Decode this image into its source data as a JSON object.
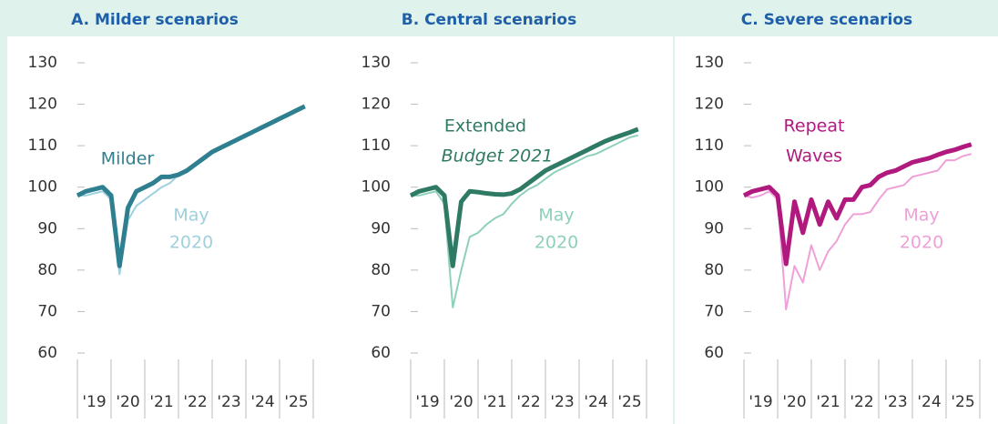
{
  "chart_data": [
    {
      "type": "line",
      "title": "A.  Milder scenarios",
      "categories": [
        "'19",
        "'20",
        "'21",
        "'22",
        "'23",
        "'24",
        "'25"
      ],
      "x": [
        2019,
        2019.25,
        2019.5,
        2019.75,
        2020,
        2020.25,
        2020.5,
        2020.75,
        2021,
        2021.25,
        2021.5,
        2021.75,
        2022,
        2022.25,
        2022.5,
        2022.75,
        2023,
        2023.25,
        2023.5,
        2023.75,
        2024,
        2024.25,
        2024.5,
        2024.75,
        2025,
        2025.25,
        2025.5,
        2025.75
      ],
      "xlim": [
        2019,
        2026
      ],
      "ylim": [
        60,
        130
      ],
      "yticks": [
        60,
        70,
        80,
        90,
        100,
        110,
        120,
        130
      ],
      "series": [
        {
          "label": [
            "May",
            "2020"
          ],
          "color": "#9fd0de",
          "width": 2,
          "values": [
            98,
            98,
            98.5,
            99,
            97,
            79,
            92,
            95.5,
            97,
            98.5,
            100,
            101,
            103,
            104,
            105.5,
            107,
            108.5,
            109.5,
            110.5,
            111.5,
            112.5,
            113.5,
            114.5,
            115.5,
            116.5,
            117.5,
            118.5,
            119.5
          ]
        },
        {
          "label": [
            "Milder"
          ],
          "color": "#2e7f8f",
          "width": 5,
          "values": [
            98,
            99,
            99.5,
            100,
            98,
            81,
            95,
            99,
            100,
            101,
            102.5,
            102.5,
            103,
            104,
            105.5,
            107,
            108.5,
            109.5,
            110.5,
            111.5,
            112.5,
            113.5,
            114.5,
            115.5,
            116.5,
            117.5,
            118.5,
            119.5
          ]
        }
      ]
    },
    {
      "type": "line",
      "title": "B.  Central scenarios",
      "categories": [
        "'19",
        "'20",
        "'21",
        "'22",
        "'23",
        "'24",
        "'25"
      ],
      "x": [
        2019,
        2019.25,
        2019.5,
        2019.75,
        2020,
        2020.25,
        2020.5,
        2020.75,
        2021,
        2021.25,
        2021.5,
        2021.75,
        2022,
        2022.25,
        2022.5,
        2022.75,
        2023,
        2023.25,
        2023.5,
        2023.75,
        2024,
        2024.25,
        2024.5,
        2024.75,
        2025,
        2025.25,
        2025.5,
        2025.75
      ],
      "xlim": [
        2019,
        2026
      ],
      "ylim": [
        60,
        130
      ],
      "yticks": [
        60,
        70,
        80,
        90,
        100,
        110,
        120,
        130
      ],
      "series": [
        {
          "label": [
            "May",
            "2020"
          ],
          "color": "#8fd0bb",
          "width": 2,
          "values": [
            98,
            98,
            98.5,
            99,
            96,
            71,
            80,
            88,
            89,
            91,
            92.5,
            93.5,
            96,
            98,
            99.5,
            100.5,
            102,
            103.5,
            104.5,
            105.5,
            106.5,
            107.5,
            108,
            109,
            110,
            111,
            112,
            112.5
          ]
        },
        {
          "label": [
            "Extended",
            "Budget 2021"
          ],
          "color": "#2f7a64",
          "width": 5,
          "values": [
            98,
            99,
            99.5,
            100,
            98,
            81,
            96.5,
            99,
            98.8,
            98.5,
            98.3,
            98.2,
            98.5,
            99.5,
            101,
            102.5,
            104,
            105,
            106,
            107,
            108,
            109,
            110,
            111,
            111.8,
            112.5,
            113.2,
            114
          ]
        }
      ]
    },
    {
      "type": "line",
      "title": "C. Severe scenarios",
      "categories": [
        "'19",
        "'20",
        "'21",
        "'22",
        "'23",
        "'24",
        "'25"
      ],
      "x": [
        2019,
        2019.25,
        2019.5,
        2019.75,
        2020,
        2020.25,
        2020.5,
        2020.75,
        2021,
        2021.25,
        2021.5,
        2021.75,
        2022,
        2022.25,
        2022.5,
        2022.75,
        2023,
        2023.25,
        2023.5,
        2023.75,
        2024,
        2024.25,
        2024.5,
        2024.75,
        2025,
        2025.25,
        2025.5,
        2025.75
      ],
      "xlim": [
        2019,
        2026
      ],
      "ylim": [
        60,
        130
      ],
      "yticks": [
        60,
        70,
        80,
        90,
        100,
        110,
        120,
        130
      ],
      "series": [
        {
          "label": [
            "May",
            "2020"
          ],
          "color": "#f0a0d8",
          "width": 2,
          "values": [
            98,
            97.5,
            98,
            99,
            97,
            70.5,
            81,
            77,
            86,
            80,
            84.5,
            87,
            91,
            93.5,
            93.5,
            94,
            97,
            99.5,
            100,
            100.5,
            102.5,
            103,
            103.5,
            104,
            106.5,
            106.5,
            107.5,
            108
          ]
        },
        {
          "label": [
            "Repeat",
            "Waves"
          ],
          "color": "#b0197e",
          "width": 5,
          "values": [
            98,
            99,
            99.5,
            100,
            98,
            81.5,
            96.5,
            89,
            97,
            91,
            96.5,
            92.5,
            97,
            97,
            100,
            100.5,
            102.5,
            103.5,
            104,
            105,
            106,
            106.5,
            107,
            107.8,
            108.5,
            109,
            109.7,
            110.3
          ]
        }
      ]
    }
  ]
}
